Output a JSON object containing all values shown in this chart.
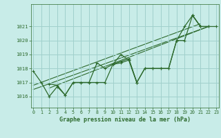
{
  "title": "Graphe pression niveau de la mer (hPa)",
  "bg_color": "#c8ece8",
  "grid_color": "#a0d0cc",
  "line_color": "#2d6a2d",
  "x_ticks": [
    0,
    1,
    2,
    3,
    4,
    5,
    6,
    7,
    8,
    9,
    10,
    11,
    12,
    13,
    14,
    15,
    16,
    17,
    18,
    19,
    20,
    21,
    22,
    23
  ],
  "y_ticks": [
    1016,
    1017,
    1018,
    1019,
    1020,
    1021
  ],
  "ylim": [
    1015.2,
    1022.6
  ],
  "xlim": [
    -0.3,
    23.3
  ],
  "series": [
    [
      1017.8,
      1017.0,
      1016.0,
      1016.7,
      1016.1,
      1017.0,
      1017.0,
      1017.0,
      1018.4,
      1018.0,
      1018.3,
      1018.5,
      1018.7,
      1017.0,
      1018.0,
      1018.0,
      1018.0,
      1018.0,
      1020.0,
      1021.0,
      1021.8,
      1021.0,
      null,
      null
    ],
    [
      null,
      null,
      1016.9,
      1016.8,
      1016.1,
      1017.0,
      1017.0,
      1017.0,
      1017.0,
      1017.0,
      1018.3,
      1019.0,
      1018.6,
      1017.0,
      null,
      null,
      null,
      null,
      null,
      null,
      null,
      null,
      null,
      null
    ],
    [
      null,
      null,
      null,
      null,
      null,
      null,
      null,
      null,
      null,
      null,
      1018.3,
      1018.4,
      1018.6,
      1017.0,
      1018.0,
      1018.0,
      1018.0,
      1018.0,
      1020.0,
      1020.0,
      1021.8,
      1021.0,
      1021.0,
      null
    ],
    [
      null,
      null,
      null,
      null,
      null,
      null,
      null,
      null,
      null,
      null,
      null,
      null,
      null,
      null,
      null,
      null,
      null,
      null,
      null,
      null,
      1021.8,
      1021.0,
      1021.0,
      1021.0
    ]
  ],
  "trend_lines": [
    {
      "x0": 0,
      "y0": 1016.8,
      "x1": 21,
      "y1": 1021.2
    },
    {
      "x0": 0,
      "y0": 1016.5,
      "x1": 22,
      "y1": 1021.0
    },
    {
      "x0": 2,
      "y0": 1016.6,
      "x1": 22,
      "y1": 1021.0
    }
  ]
}
